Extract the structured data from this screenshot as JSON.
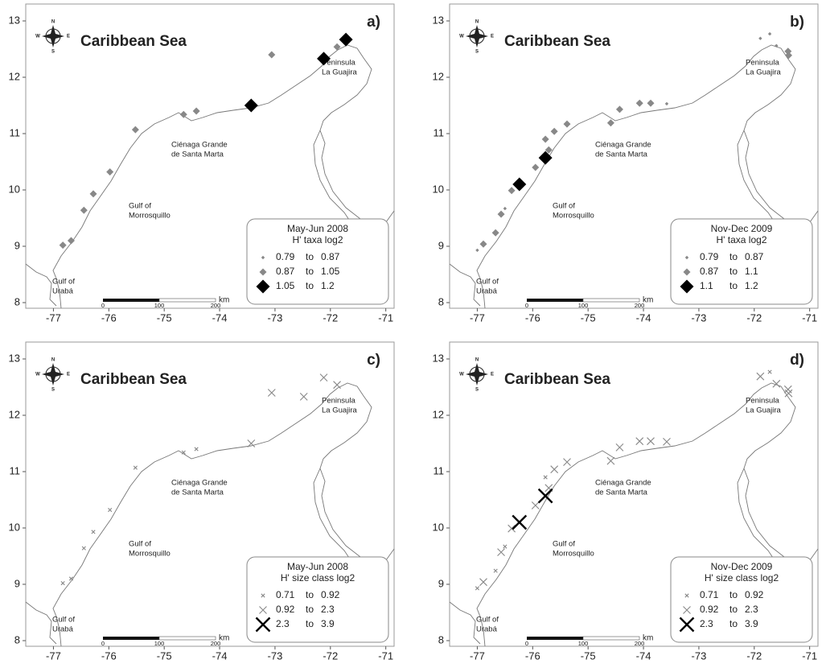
{
  "axes": {
    "xlim": [
      -77.5,
      -70.85
    ],
    "ylim": [
      7.9,
      13.3
    ],
    "xticks": [
      -77,
      -76,
      -75,
      -74,
      -73,
      -72,
      -71
    ],
    "yticks": [
      8,
      9,
      10,
      11,
      12,
      13
    ]
  },
  "sea": "Caribbean Sea",
  "compass": {
    "n": "N",
    "s": "S",
    "e": "E",
    "w": "W"
  },
  "places": {
    "guajira": [
      "Peninsula",
      "La Guajira"
    ],
    "cienaga": [
      "Ciénaga Grande",
      "de Santa Marta"
    ],
    "morrosquillo": [
      "Gulf of",
      "Morrosquillo"
    ],
    "uraba": [
      "Gulf of",
      "Urabá"
    ]
  },
  "scale": {
    "labels": [
      "0",
      "100",
      "200"
    ],
    "unit": "km"
  },
  "joiner": "to",
  "panels": [
    {
      "label": "a)",
      "marker": "diamond",
      "legend": {
        "title": [
          "May-Jun 2008",
          "H' taxa log2"
        ],
        "entries": [
          {
            "low": 0.79,
            "high": 0.87
          },
          {
            "low": 0.87,
            "high": 1.05
          },
          {
            "low": 1.05,
            "high": 1.2
          }
        ]
      },
      "points": {
        "lon": [
          -76.83,
          -76.68,
          -76.45,
          -76.28,
          -75.98,
          -75.52,
          -74.65,
          -74.42,
          -73.43,
          -73.06,
          -72.12,
          -71.72,
          -71.88
        ],
        "lat": [
          9.02,
          9.1,
          9.64,
          9.93,
          10.32,
          11.07,
          11.34,
          11.4,
          11.5,
          12.4,
          12.33,
          12.67,
          12.54
        ],
        "class": [
          2,
          2,
          2,
          2,
          2,
          2,
          2,
          2,
          3,
          2,
          3,
          3,
          2
        ]
      }
    },
    {
      "label": "b)",
      "marker": "diamond",
      "legend": {
        "title": [
          "Nov-Dec 2009",
          "H' taxa log2"
        ],
        "entries": [
          {
            "low": 0.79,
            "high": 0.87
          },
          {
            "low": 0.87,
            "high": 1.1
          },
          {
            "low": 1.1,
            "high": 1.2
          }
        ]
      },
      "points": {
        "lon": [
          -77,
          -76.89,
          -76.67,
          -76.57,
          -76.5,
          -76.38,
          -76.24,
          -75.95,
          -75.77,
          -75.71,
          -75.77,
          -75.61,
          -75.38,
          -74.59,
          -74.43,
          -74.07,
          -73.87,
          -73.58,
          -71.89,
          -71.72,
          -71.6,
          -71.39,
          -71.38
        ],
        "lat": [
          8.93,
          9.04,
          9.24,
          9.57,
          9.67,
          9.99,
          10.1,
          10.4,
          10.9,
          10.71,
          10.57,
          11.04,
          11.17,
          11.19,
          11.43,
          11.54,
          11.54,
          11.53,
          12.69,
          12.77,
          12.56,
          12.46,
          12.39
        ],
        "class": [
          1,
          2,
          2,
          2,
          1,
          2,
          3,
          2,
          2,
          2,
          3,
          2,
          2,
          2,
          2,
          2,
          2,
          1,
          1,
          1,
          1,
          2,
          2
        ]
      }
    },
    {
      "label": "c)",
      "marker": "cross",
      "legend": {
        "title": [
          "May-Jun 2008",
          "H' size class log2"
        ],
        "entries": [
          {
            "low": 0.71,
            "high": 0.92
          },
          {
            "low": 0.92,
            "high": 2.3
          },
          {
            "low": 2.3,
            "high": 3.9
          }
        ]
      },
      "points": {
        "lon": [
          -76.83,
          -76.68,
          -76.45,
          -76.28,
          -75.98,
          -75.52,
          -74.65,
          -74.42,
          -73.43,
          -73.06,
          -72.48,
          -72.12,
          -71.88
        ],
        "lat": [
          9.02,
          9.1,
          9.64,
          9.93,
          10.32,
          11.07,
          11.34,
          11.4,
          11.5,
          12.4,
          12.33,
          12.67,
          12.54
        ],
        "class": [
          1,
          1,
          1,
          1,
          1,
          1,
          1,
          1,
          2,
          2,
          2,
          2,
          2
        ]
      }
    },
    {
      "label": "d)",
      "marker": "cross",
      "legend": {
        "title": [
          "Nov-Dec 2009",
          "H' size class log2"
        ],
        "entries": [
          {
            "low": 0.71,
            "high": 0.92
          },
          {
            "low": 0.92,
            "high": 2.3
          },
          {
            "low": 2.3,
            "high": 3.9
          }
        ]
      },
      "points": {
        "lon": [
          -77,
          -76.89,
          -76.67,
          -76.57,
          -76.5,
          -76.38,
          -76.24,
          -75.95,
          -75.77,
          -75.71,
          -75.77,
          -75.61,
          -75.38,
          -74.59,
          -74.43,
          -74.07,
          -73.87,
          -73.58,
          -71.89,
          -71.72,
          -71.6,
          -71.39,
          -71.38
        ],
        "lat": [
          8.93,
          9.04,
          9.24,
          9.57,
          9.67,
          9.99,
          10.1,
          10.4,
          10.9,
          10.71,
          10.57,
          11.04,
          11.17,
          11.19,
          11.43,
          11.54,
          11.54,
          11.53,
          12.69,
          12.77,
          12.56,
          12.46,
          12.39
        ],
        "class": [
          1,
          2,
          1,
          2,
          1,
          2,
          3,
          2,
          1,
          2,
          3,
          2,
          2,
          2,
          2,
          2,
          2,
          2,
          2,
          1,
          2,
          2,
          2
        ]
      }
    }
  ]
}
